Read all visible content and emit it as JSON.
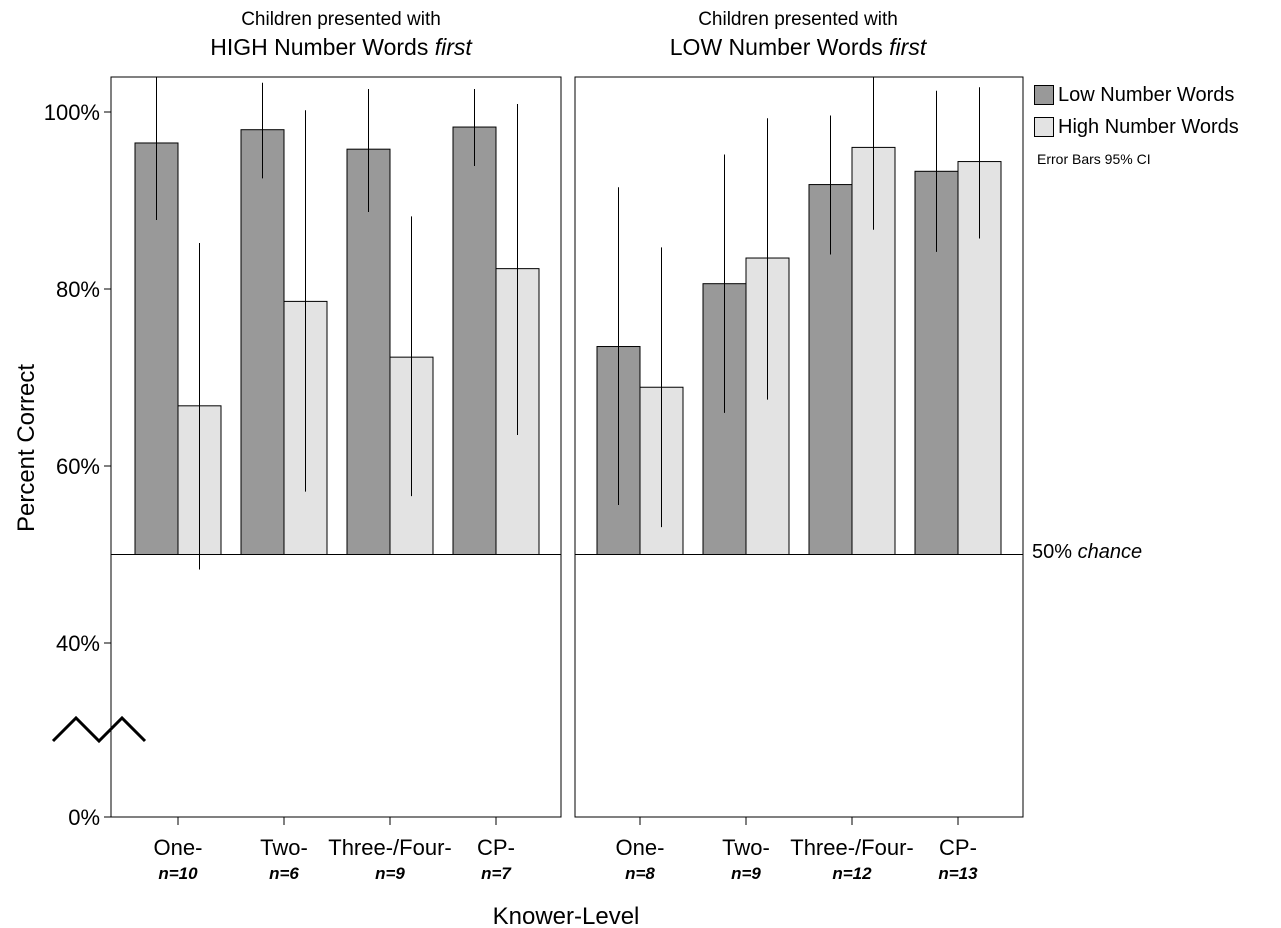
{
  "chart_data": {
    "type": "bar",
    "ylabel": "Percent Correct",
    "xlabel": "Knower-Level",
    "y_ticks": [
      "0%",
      "40%",
      "60%",
      "80%",
      "100%"
    ],
    "axis_break": true,
    "error_bars": "Error Bars 95% CI",
    "chance_line": {
      "value_pct": 50,
      "label": "50%",
      "label_italic": "chance"
    },
    "legend": {
      "position": "top-right",
      "entries": [
        {
          "name": "Low Number Words",
          "color": "#999999"
        },
        {
          "name": "High Number Words",
          "color": "#e3e3e3"
        }
      ]
    },
    "panels": [
      {
        "title_line1": "Children presented with",
        "title_line2": "HIGH Number Words",
        "title_italic": "first",
        "categories": [
          "One-",
          "Two-",
          "Three-/Four-",
          "CP-"
        ],
        "n_labels": [
          "n=10",
          "n=6",
          "n=9",
          "n=7"
        ],
        "series": [
          {
            "name": "Low Number Words",
            "values": [
              96.5,
              98,
              95.8,
              98.3
            ],
            "ci_low": [
              87.8,
              92.5,
              88.7,
              93.9
            ],
            "ci_high": [
              104,
              103.3,
              102.6,
              102.6
            ]
          },
          {
            "name": "High Number Words",
            "values": [
              66.8,
              78.6,
              72.3,
              82.3
            ],
            "ci_low": [
              48.3,
              57.1,
              56.6,
              63.5
            ],
            "ci_high": [
              85.2,
              100.2,
              88.2,
              100.9
            ]
          }
        ]
      },
      {
        "title_line1": "Children presented with",
        "title_line2": "LOW Number Words",
        "title_italic": "first",
        "categories": [
          "One-",
          "Two-",
          "Three-/Four-",
          "CP-"
        ],
        "n_labels": [
          "n=8",
          "n=9",
          "n=12",
          "n=13"
        ],
        "series": [
          {
            "name": "Low Number Words",
            "values": [
              73.5,
              80.6,
              91.8,
              93.3
            ],
            "ci_low": [
              55.6,
              66,
              83.9,
              84.2
            ],
            "ci_high": [
              91.5,
              95.2,
              99.6,
              102.4
            ]
          },
          {
            "name": "High Number Words",
            "values": [
              68.9,
              83.5,
              96,
              94.4
            ],
            "ci_low": [
              53.1,
              67.5,
              86.7,
              85.7
            ],
            "ci_high": [
              84.7,
              99.3,
              104,
              102.8
            ]
          }
        ]
      }
    ]
  }
}
